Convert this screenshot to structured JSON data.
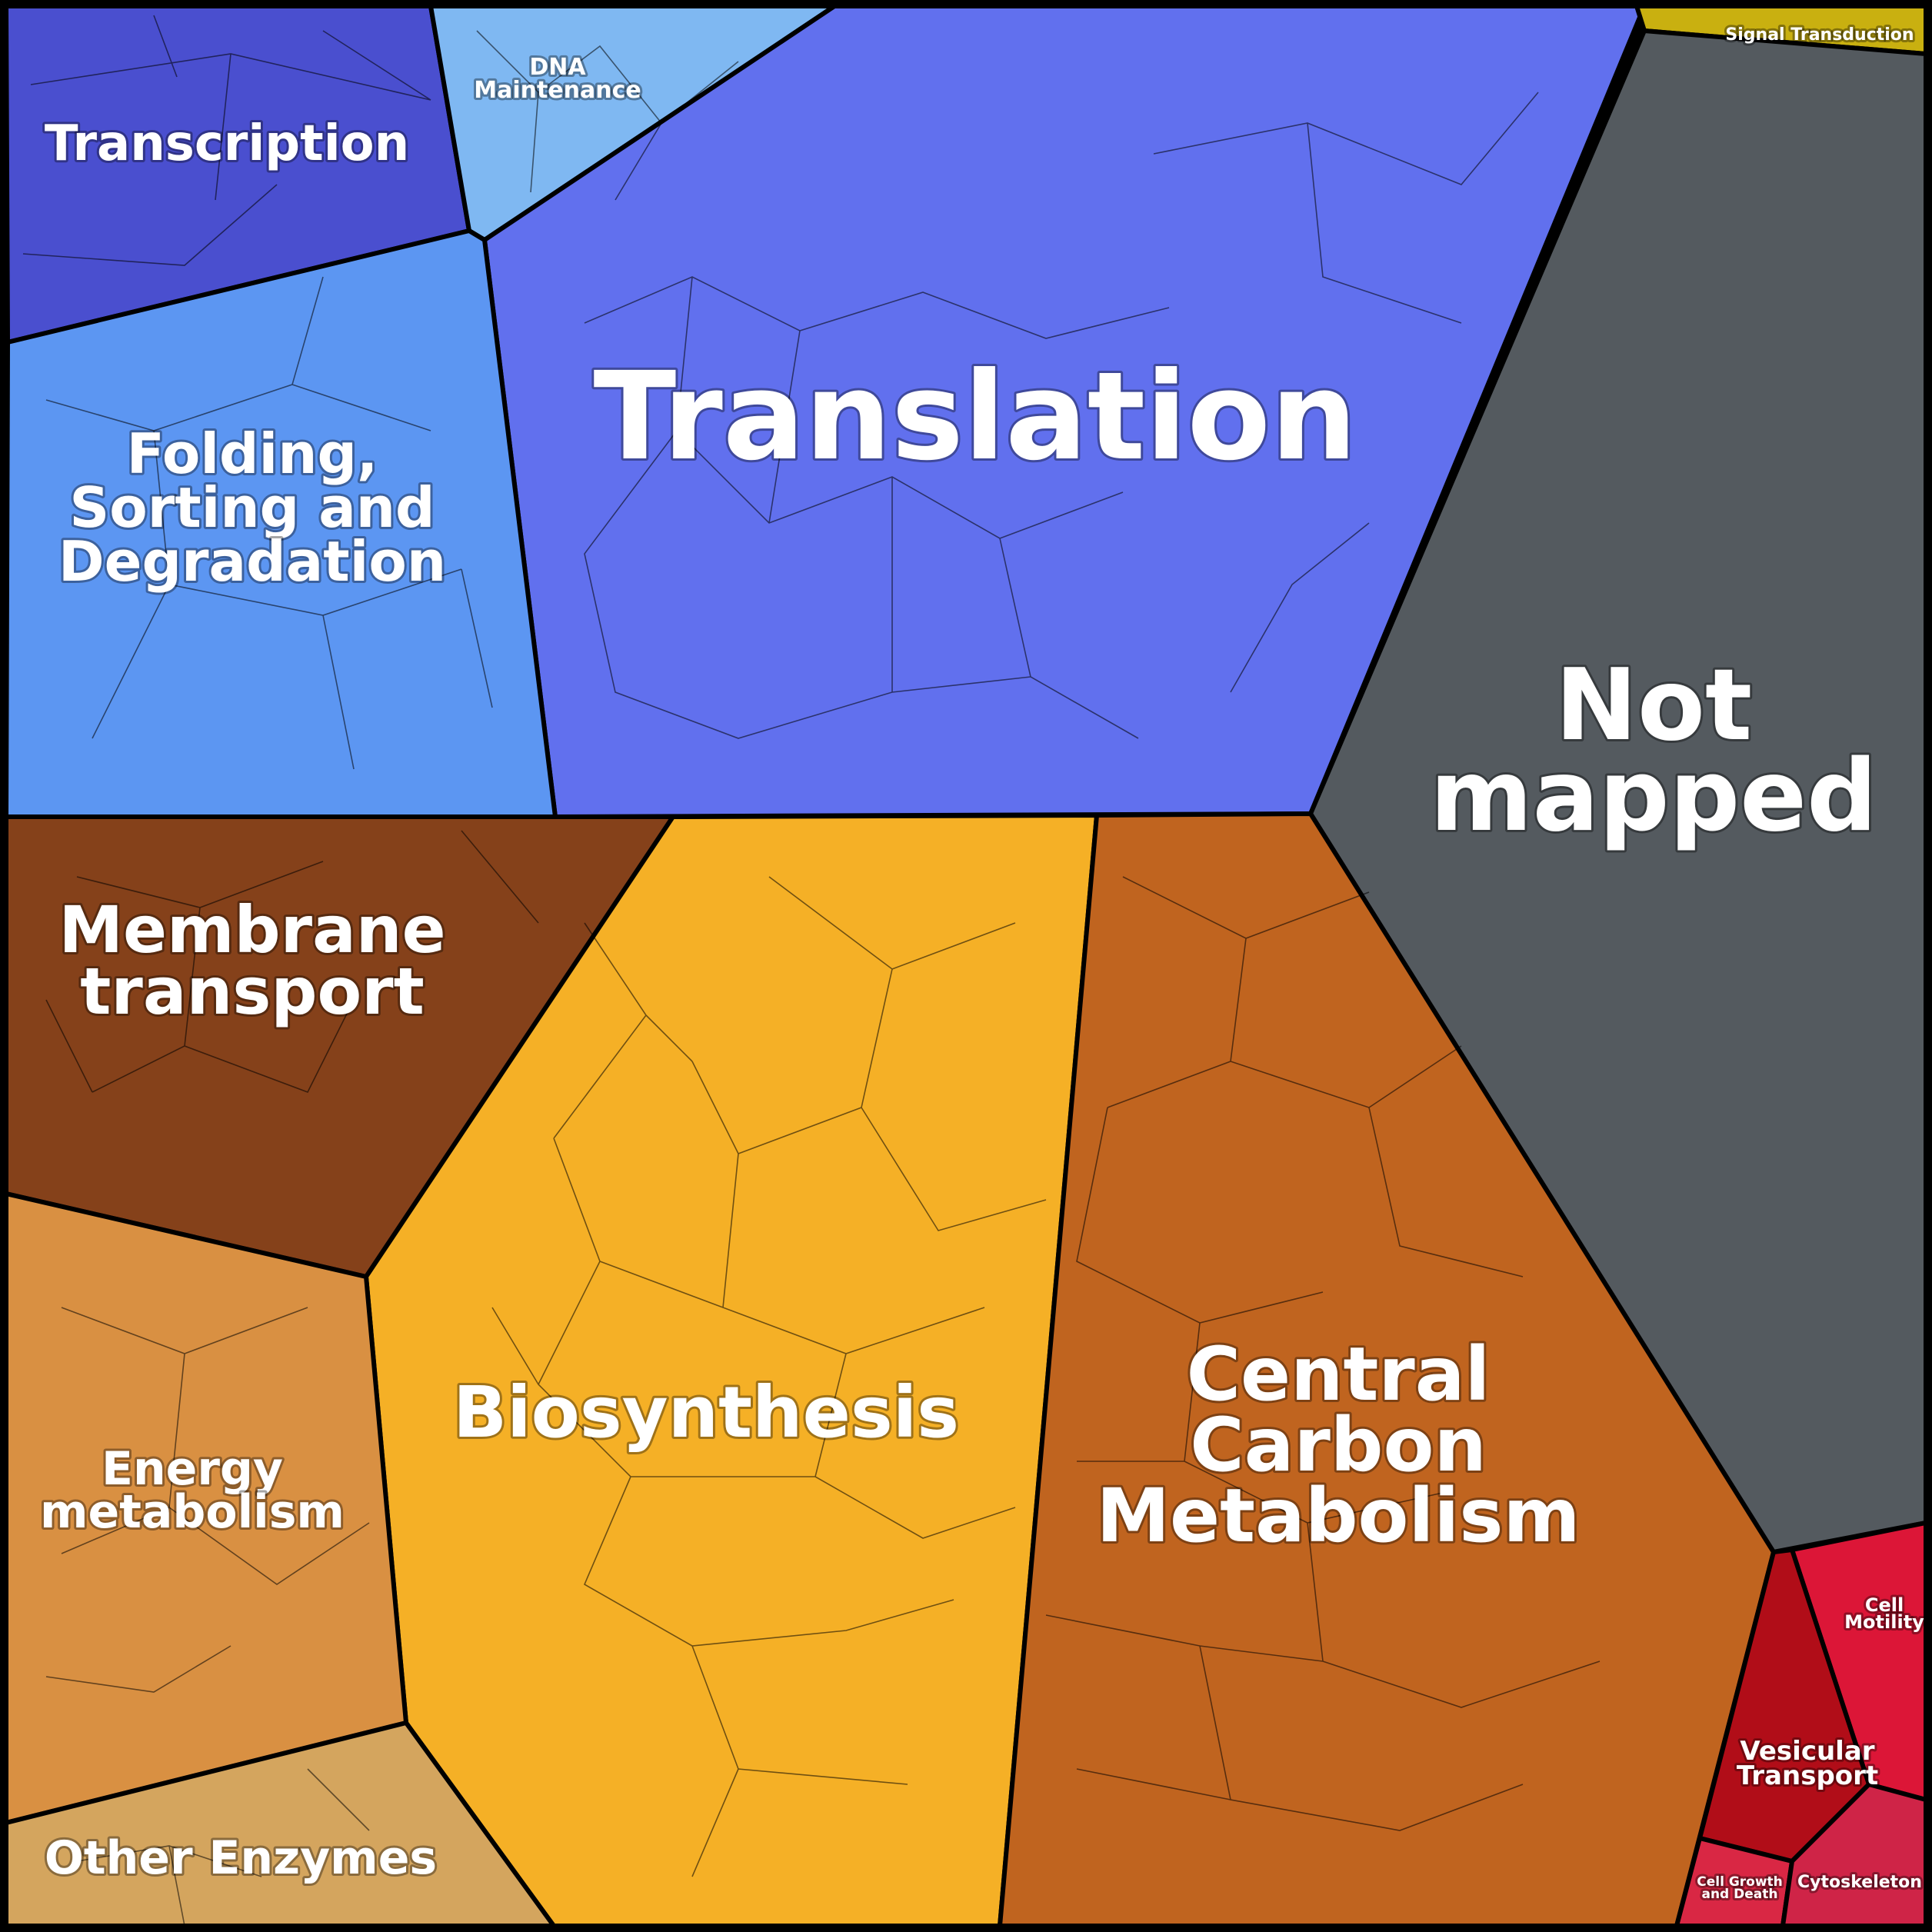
{
  "categories": [
    {
      "id": "transcription",
      "label": "Transcription",
      "color": "#4a4fcf"
    },
    {
      "id": "dna-maintenance",
      "label": "DNA Maintenance",
      "color": "#7fb8f2"
    },
    {
      "id": "translation",
      "label": "Translation",
      "color": "#6170ee"
    },
    {
      "id": "folding",
      "label": "Folding, Sorting and Degradation",
      "color": "#5c96f2"
    },
    {
      "id": "signal-transduction",
      "label": "Signal Transduction",
      "color": "#c9b010"
    },
    {
      "id": "not-mapped",
      "label": "Not mapped",
      "color": "#545a5f"
    },
    {
      "id": "membrane-transport",
      "label": "Membrane transport",
      "color": "#85411a"
    },
    {
      "id": "biosynthesis",
      "label": "Biosynthesis",
      "color": "#f5b026"
    },
    {
      "id": "central-carbon",
      "label": "Central Carbon Metabolism",
      "color": "#c0641f"
    },
    {
      "id": "energy-metabolism",
      "label": "Energy metabolism",
      "color": "#d99042"
    },
    {
      "id": "other-enzymes",
      "label": "Other Enzymes",
      "color": "#d4a55e"
    },
    {
      "id": "cell-motility",
      "label": "Cell Motility",
      "color": "#dc1637"
    },
    {
      "id": "vesicular-transport",
      "label": "Vesicular Transport",
      "color": "#b10d18"
    },
    {
      "id": "cell-growth",
      "label": "Cell Growth and Death",
      "color": "#d92744"
    },
    {
      "id": "cytoskeleton",
      "label": "Cytoskeleton",
      "color": "#cf2447"
    }
  ],
  "labels": {
    "transcription": [
      "Transcription"
    ],
    "dna_maintenance": [
      "DNA",
      "Maintenance"
    ],
    "translation": [
      "Translation"
    ],
    "folding": [
      "Folding,",
      "Sorting and",
      "Degradation"
    ],
    "signal_transduction": [
      "Signal Transduction"
    ],
    "not_mapped": [
      "Not",
      "mapped"
    ],
    "membrane_transport": [
      "Membrane",
      "transport"
    ],
    "biosynthesis": [
      "Biosynthesis"
    ],
    "central_carbon": [
      "Central",
      "Carbon",
      "Metabolism"
    ],
    "energy_metabolism": [
      "Energy",
      "metabolism"
    ],
    "other_enzymes": [
      "Other Enzymes"
    ],
    "cell_motility": [
      "Cell",
      "Motility"
    ],
    "vesicular_transport": [
      "Vesicular",
      "Transport"
    ],
    "cell_growth": [
      "Cell Growth",
      "and Death"
    ],
    "cytoskeleton": [
      "Cytoskeleton"
    ]
  }
}
